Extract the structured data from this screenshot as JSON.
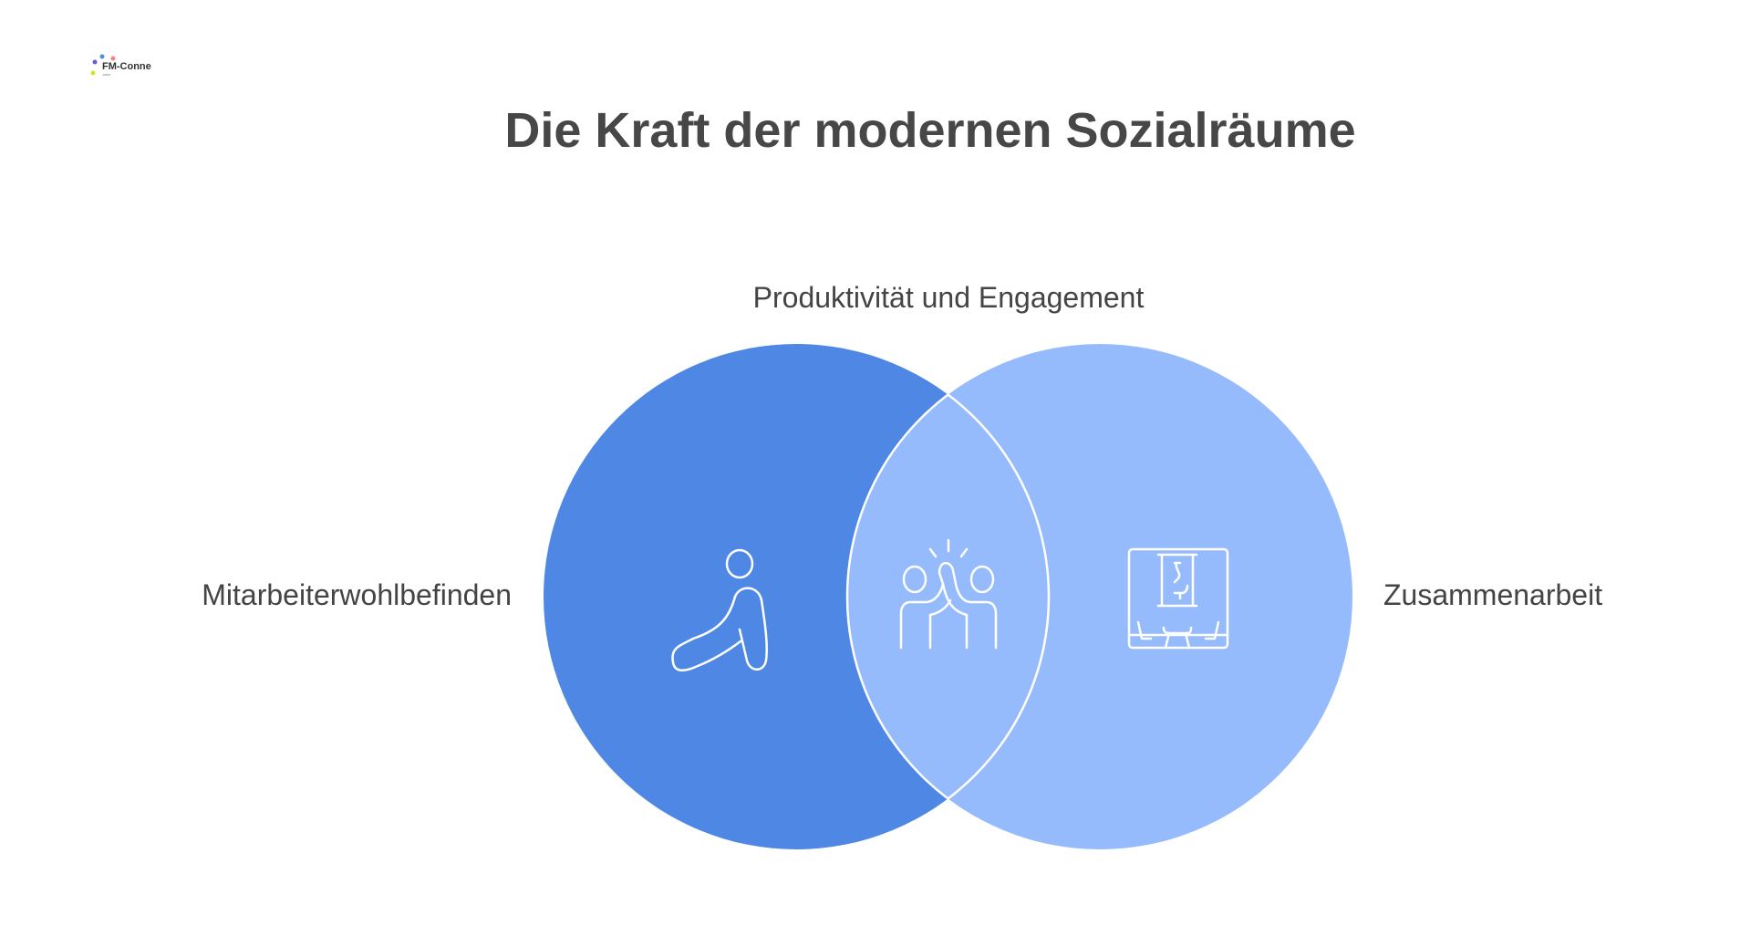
{
  "logo": {
    "text": "FM-Connect.com"
  },
  "title": "Die Kraft der modernen Sozialräume",
  "labels": {
    "top": "Produktivität und Engagement",
    "left": "Mitarbeiterwohlbefinden",
    "right": "Zusammenarbeit"
  },
  "colors": {
    "left_circle": "#4E88E4",
    "right_circle": "#96BBFD",
    "overlap": "#96BBFD",
    "stroke": "#FFFFFF"
  },
  "icons": {
    "left": "stretching-person-icon",
    "center": "high-five-icon",
    "right": "presentation-room-icon"
  }
}
